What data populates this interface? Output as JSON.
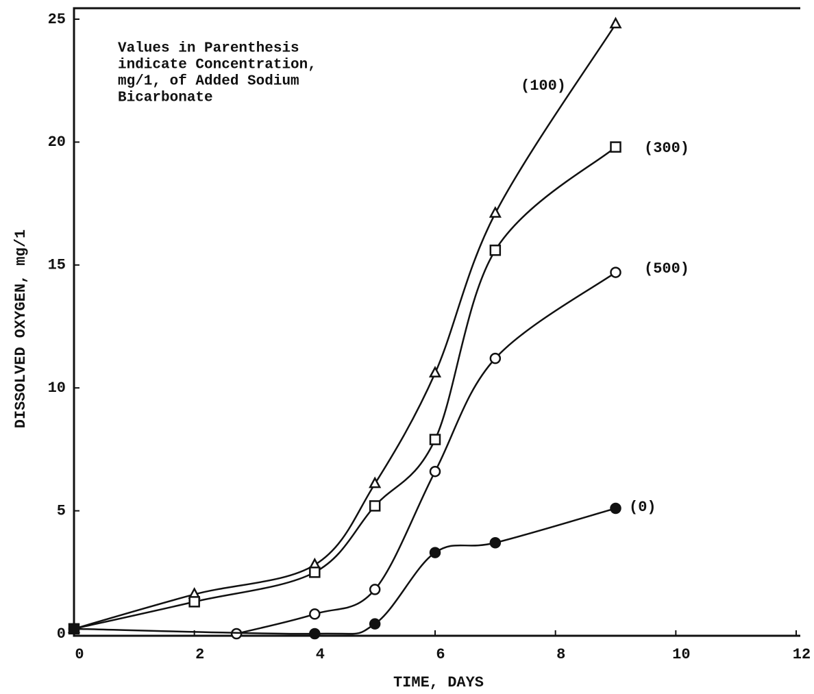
{
  "chart_data": {
    "type": "line",
    "xlabel": "TIME, DAYS",
    "ylabel": "DISSOLVED OXYGEN, mg/1",
    "annotation": [
      "Values in Parenthesis",
      "indicate Concentration,",
      "mg/1, of Added Sodium",
      "Bicarbonate"
    ],
    "xlim": [
      0,
      12
    ],
    "xticks": [
      0,
      2,
      4,
      6,
      8,
      10,
      12
    ],
    "ylim": [
      0,
      25
    ],
    "yticks": [
      0,
      5,
      10,
      15,
      20,
      25
    ],
    "series": [
      {
        "name": "(100)",
        "color": "#111111",
        "marker": "triangle",
        "x": [
          0,
          2,
          4,
          5,
          6,
          7,
          9
        ],
        "values": [
          0.2,
          1.6,
          2.8,
          6.1,
          10.6,
          17.1,
          24.8
        ]
      },
      {
        "name": "(300)",
        "color": "#111111",
        "marker": "square",
        "x": [
          0,
          2,
          4,
          5,
          6,
          7,
          9
        ],
        "values": [
          0.2,
          1.3,
          2.5,
          5.2,
          7.9,
          15.6,
          19.8
        ]
      },
      {
        "name": "(500)",
        "color": "#111111",
        "marker": "circle",
        "x": [
          2.7,
          4,
          5,
          6,
          7,
          9
        ],
        "values": [
          0,
          0.8,
          1.8,
          6.6,
          11.2,
          14.7
        ]
      },
      {
        "name": "(0)",
        "color": "#111111",
        "marker": "filled-circle",
        "x": [
          0,
          4,
          5,
          6,
          7,
          9
        ],
        "values": [
          0.2,
          0,
          0.4,
          3.3,
          3.7,
          5.1
        ]
      }
    ]
  }
}
